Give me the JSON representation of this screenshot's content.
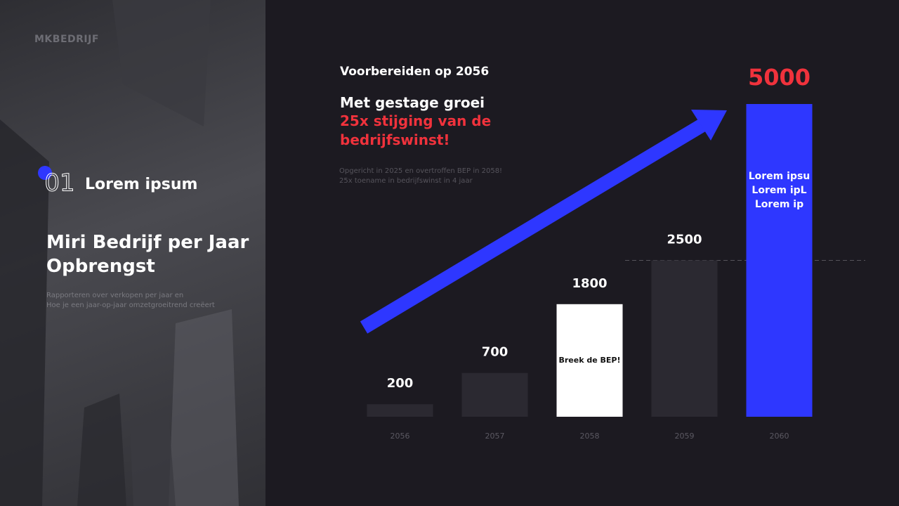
{
  "sidebar": {
    "brand": "MKBEDRIJF",
    "number": "01",
    "section": "Lorem ipsum",
    "heading": [
      "Miri Bedrijf per Jaar",
      "Opbrengst"
    ],
    "description": [
      "Rapporteren over verkopen per jaar en",
      "Hoe je een jaar-op-jaar omzetgroeitrend creëert"
    ]
  },
  "chart_data": {
    "type": "bar",
    "title": "Voorbereiden op 2056",
    "subtitle": "Met gestage groei",
    "highlight": [
      "25x stijging van de",
      "bedrijfswinst!"
    ],
    "notes": [
      "Opgericht in 2025 en overtroffen BEP in 2058!",
      "25x toename in bedrijfswinst in 4 jaar"
    ],
    "categories": [
      "2056",
      "2057",
      "2058",
      "2059",
      "2060"
    ],
    "values": [
      200,
      700,
      1800,
      2500,
      5000
    ],
    "colors": [
      "#2b2931",
      "#2b2931",
      "#ffffff",
      "#2b2931",
      "#2e37ff"
    ],
    "bar_texts": [
      null,
      null,
      [
        "Breek de BEP!"
      ],
      null,
      [
        "Lorem ipsu",
        "Lorem ipL",
        "Lorem ip"
      ]
    ],
    "ylim": [
      0,
      5000
    ]
  }
}
